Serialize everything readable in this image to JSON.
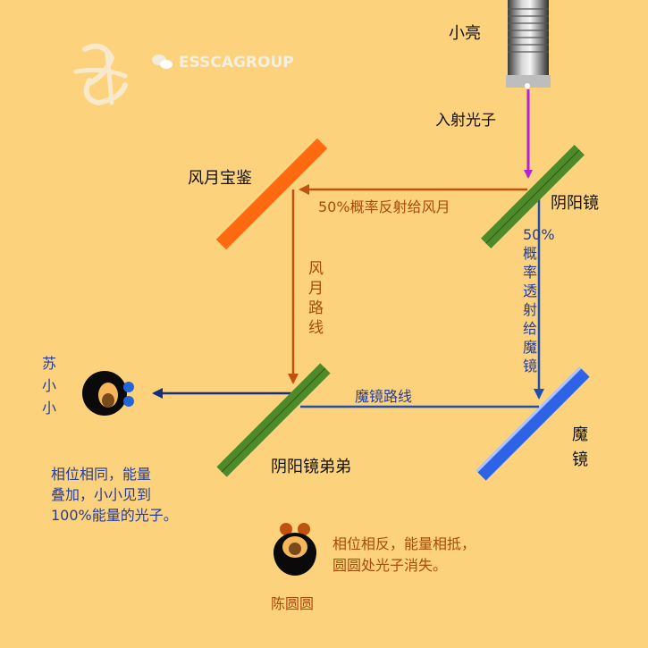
{
  "watermark": {
    "brand": "ESSCAGROUP",
    "icon": "wechat-icon"
  },
  "colors": {
    "background": "#fdd27c",
    "photon_in": "#b124d6",
    "reflect_path": "#c0510f",
    "transmit_path": "#1f4fae",
    "output_path": "#152e80",
    "label_brown": "#a94a0b",
    "label_blue": "#243d9a",
    "mirror_green": "#4f8a2a",
    "mirror_orange": "#ff6a10",
    "mirror_blue": "#2e63e8"
  },
  "source": {
    "label": "小亮",
    "icon": "flashlight-icon"
  },
  "labels": {
    "incident_photon": "入射光子",
    "beam_splitter": "阴阳镜",
    "fengyue_mirror": "风月宝鉴",
    "reflect_50": "50%概率反射给风月",
    "fengyue_path": "风月路线",
    "transmit_50": "50%概率透射给魔镜",
    "magic_mirror": "魔镜",
    "magic_path": "魔镜路线",
    "beam_splitter_2": "阴阳镜弟弟"
  },
  "observers": {
    "su": {
      "name": "苏小小",
      "note_line1": "相位相同，能量",
      "note_line2": "叠加，小小见到",
      "note_line3": "100%能量的光子。"
    },
    "chen": {
      "name": "陈圆圆",
      "note_line1": "相位相反，能量相抵，",
      "note_line2": "圆圆处光子消失。"
    }
  }
}
